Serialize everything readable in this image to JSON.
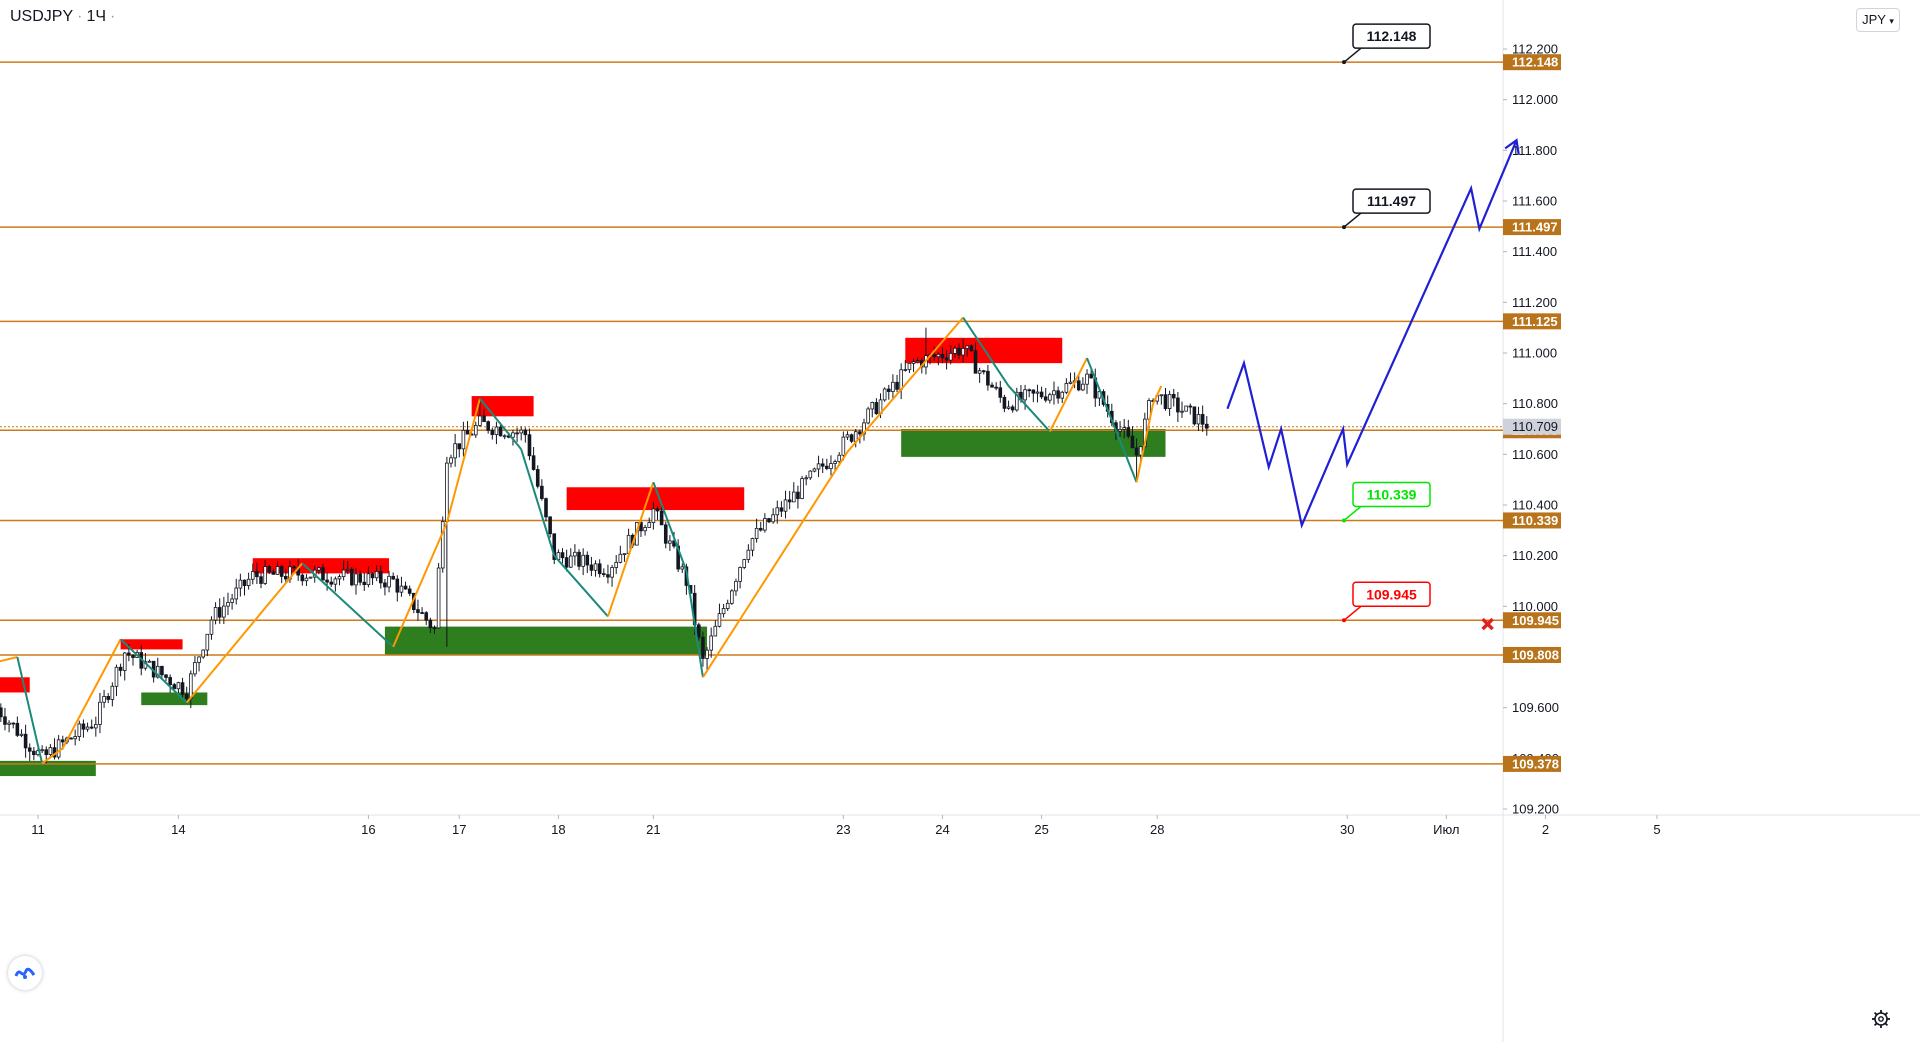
{
  "header": {
    "symbol": "USDJPY",
    "interval": "1Ч",
    "dot": "·"
  },
  "currency_button": {
    "label": "JPY",
    "icon": "chevron-down-icon"
  },
  "logo": {
    "icon": "tradingview-logo-icon"
  },
  "settings": {
    "icon": "gear-icon"
  },
  "colors": {
    "level_line": "#cc7a1a",
    "axis_tag": "#b8731b",
    "up_zone": "#2e7d1f",
    "down_zone": "#ff0000",
    "zigzag_up": "#ff9800",
    "zigzag_down": "#1a8a7a",
    "forecast": "#1f1fd6",
    "candle": "#131722",
    "price_tag_current": "#cfd2da"
  },
  "chart_data": {
    "type": "candlestick",
    "symbol": "USDJPY",
    "timeframe": "1Ч",
    "ylim": [
      109.15,
      112.4
    ],
    "y_ticks": [
      "112.200",
      "112.000",
      "111.800",
      "111.600",
      "111.400",
      "111.200",
      "111.000",
      "110.800",
      "110.600",
      "110.400",
      "110.200",
      "110.000",
      "109.800",
      "109.600",
      "109.400",
      "109.200"
    ],
    "x_ticks": [
      {
        "label": "11",
        "slot": 0
      },
      {
        "label": "14",
        "slot": 34
      },
      {
        "label": "16",
        "slot": 80
      },
      {
        "label": "17",
        "slot": 102
      },
      {
        "label": "18",
        "slot": 126
      },
      {
        "label": "21",
        "slot": 149
      },
      {
        "label": "23",
        "slot": 195
      },
      {
        "label": "24",
        "slot": 219
      },
      {
        "label": "25",
        "slot": 243
      },
      {
        "label": "28",
        "slot": 271
      },
      {
        "label": "30",
        "slot": 317
      },
      {
        "label": "Июл",
        "slot": 341
      },
      {
        "label": "2",
        "slot": 365
      },
      {
        "label": "5",
        "slot": 392
      }
    ],
    "last_price": "110.709",
    "levels": [
      {
        "value": 112.148,
        "label": "112.148",
        "callout": "112.148",
        "callout_color": "#131722"
      },
      {
        "value": 111.497,
        "label": "111.497",
        "callout": "111.497",
        "callout_color": "#131722"
      },
      {
        "value": 111.125,
        "label": "111.125"
      },
      {
        "value": 110.695,
        "label": "110.695"
      },
      {
        "value": 110.339,
        "label": "110.339",
        "callout": "110.339",
        "callout_color": "#00e600"
      },
      {
        "value": 109.945,
        "label": "109.945",
        "callout": "109.945",
        "callout_color": "#ff0000"
      },
      {
        "value": 109.808,
        "label": "109.808"
      },
      {
        "value": 109.378,
        "label": "109.378"
      }
    ],
    "zones": [
      {
        "kind": "demand",
        "slot_from": -10,
        "slot_to": 14,
        "high": 109.39,
        "low": 109.33
      },
      {
        "kind": "supply",
        "slot_from": -10,
        "slot_to": -2,
        "high": 109.72,
        "low": 109.66
      },
      {
        "kind": "demand",
        "slot_from": 25,
        "slot_to": 41,
        "high": 109.66,
        "low": 109.61
      },
      {
        "kind": "supply",
        "slot_from": 20,
        "slot_to": 35,
        "high": 109.87,
        "low": 109.83
      },
      {
        "kind": "supply",
        "slot_from": 52,
        "slot_to": 85,
        "high": 110.19,
        "low": 110.13
      },
      {
        "kind": "demand",
        "slot_from": 84,
        "slot_to": 162,
        "high": 109.92,
        "low": 109.81
      },
      {
        "kind": "supply",
        "slot_from": 105,
        "slot_to": 120,
        "high": 110.83,
        "low": 110.75
      },
      {
        "kind": "supply",
        "slot_from": 128,
        "slot_to": 171,
        "high": 110.47,
        "low": 110.38
      },
      {
        "kind": "supply",
        "slot_from": 210,
        "slot_to": 248,
        "high": 111.06,
        "low": 110.96
      },
      {
        "kind": "demand",
        "slot_from": 209,
        "slot_to": 273,
        "high": 110.7,
        "low": 110.59
      }
    ],
    "zigzag": [
      {
        "slot": -10,
        "price": 109.78
      },
      {
        "slot": -5,
        "price": 109.8
      },
      {
        "slot": 1,
        "price": 109.38
      },
      {
        "slot": 6,
        "price": 109.44
      },
      {
        "slot": 20,
        "price": 109.87
      },
      {
        "slot": 36,
        "price": 109.62
      },
      {
        "slot": 64,
        "price": 110.17
      },
      {
        "slot": 86,
        "price": 109.84
      },
      {
        "slot": 99,
        "price": 110.33
      },
      {
        "slot": 107,
        "price": 110.82
      },
      {
        "slot": 117,
        "price": 110.62
      },
      {
        "slot": 125,
        "price": 110.2
      },
      {
        "slot": 138,
        "price": 109.96
      },
      {
        "slot": 149,
        "price": 110.49
      },
      {
        "slot": 157,
        "price": 110.14
      },
      {
        "slot": 161,
        "price": 109.72
      },
      {
        "slot": 196,
        "price": 110.61
      },
      {
        "slot": 224,
        "price": 111.14
      },
      {
        "slot": 235,
        "price": 110.87
      },
      {
        "slot": 245,
        "price": 110.69
      },
      {
        "slot": 254,
        "price": 110.98
      },
      {
        "slot": 266,
        "price": 110.49
      },
      {
        "slot": 270,
        "price": 110.8
      },
      {
        "slot": 272,
        "price": 110.87
      }
    ],
    "forecast_path": [
      {
        "slot": 288,
        "price": 110.78
      },
      {
        "slot": 292,
        "price": 110.96
      },
      {
        "slot": 298,
        "price": 110.55
      },
      {
        "slot": 301,
        "price": 110.7
      },
      {
        "slot": 306,
        "price": 110.32
      },
      {
        "slot": 316,
        "price": 110.7
      },
      {
        "slot": 317,
        "price": 110.56
      },
      {
        "slot": 347,
        "price": 111.65
      },
      {
        "slot": 349,
        "price": 111.49
      },
      {
        "slot": 358,
        "price": 111.84
      }
    ],
    "invalidation_marker": {
      "slot": 351,
      "price": 109.93,
      "icon": "cross-icon"
    },
    "candles_seed": {
      "anchors": [
        {
          "slot": -10,
          "price": 109.6
        },
        {
          "slot": 1,
          "price": 109.4
        },
        {
          "slot": 14,
          "price": 109.55
        },
        {
          "slot": 21,
          "price": 109.82
        },
        {
          "slot": 36,
          "price": 109.67
        },
        {
          "slot": 42,
          "price": 109.95
        },
        {
          "slot": 52,
          "price": 110.12
        },
        {
          "slot": 64,
          "price": 110.13
        },
        {
          "slot": 86,
          "price": 110.1
        },
        {
          "slot": 96,
          "price": 109.91
        },
        {
          "slot": 99,
          "price": 110.6
        },
        {
          "slot": 107,
          "price": 110.72
        },
        {
          "slot": 118,
          "price": 110.68
        },
        {
          "slot": 125,
          "price": 110.2
        },
        {
          "slot": 138,
          "price": 110.15
        },
        {
          "slot": 149,
          "price": 110.38
        },
        {
          "slot": 157,
          "price": 110.1
        },
        {
          "slot": 161,
          "price": 109.78
        },
        {
          "slot": 172,
          "price": 110.25
        },
        {
          "slot": 195,
          "price": 110.64
        },
        {
          "slot": 212,
          "price": 110.96
        },
        {
          "slot": 224,
          "price": 111.02
        },
        {
          "slot": 234,
          "price": 110.8
        },
        {
          "slot": 246,
          "price": 110.85
        },
        {
          "slot": 254,
          "price": 110.9
        },
        {
          "slot": 266,
          "price": 110.6
        },
        {
          "slot": 270,
          "price": 110.84
        },
        {
          "slot": 283,
          "price": 110.72
        }
      ],
      "spikes": [
        {
          "slot": 2,
          "price": 109.38
        },
        {
          "slot": 99,
          "price": 109.84
        },
        {
          "slot": 107,
          "price": 110.82
        },
        {
          "slot": 162,
          "price": 109.74
        },
        {
          "slot": 215,
          "price": 111.1
        },
        {
          "slot": 266,
          "price": 110.5
        }
      ]
    }
  }
}
